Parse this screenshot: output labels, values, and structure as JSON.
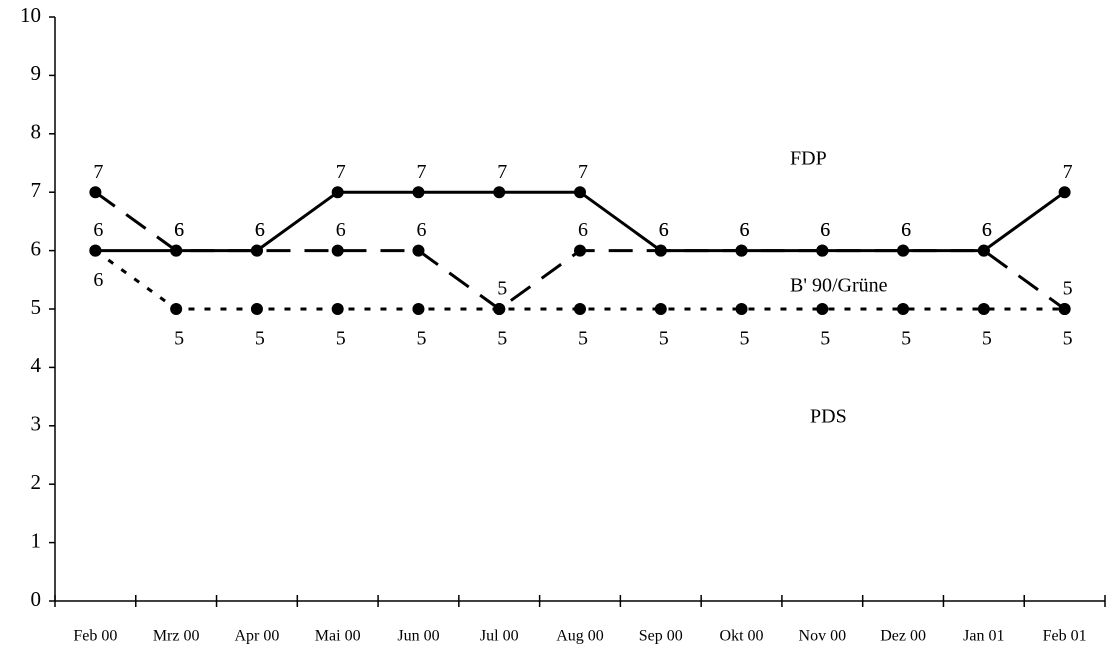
{
  "chart_data": {
    "type": "line",
    "categories": [
      "Feb 00",
      "Mrz 00",
      "Apr 00",
      "Mai 00",
      "Jun 00",
      "Jul 00",
      "Aug 00",
      "Sep 00",
      "Okt 00",
      "Nov 00",
      "Dez 00",
      "Jan 01",
      "Feb 01"
    ],
    "series": [
      {
        "name": "FDP",
        "color": "#000000",
        "dash": "solid",
        "values": [
          6,
          6,
          6,
          7,
          7,
          7,
          7,
          6,
          6,
          6,
          6,
          6,
          7
        ]
      },
      {
        "name": "B' 90/Grüne",
        "color": "#000000",
        "dash": "dashed",
        "values": [
          7,
          6,
          6,
          6,
          6,
          5,
          6,
          6,
          6,
          6,
          6,
          6,
          5
        ]
      },
      {
        "name": "PDS",
        "color": "#000000",
        "dash": "dotted",
        "values": [
          6,
          5,
          5,
          5,
          5,
          5,
          5,
          5,
          5,
          5,
          5,
          5,
          5
        ]
      }
    ],
    "ylim": [
      0,
      10
    ],
    "yticks": [
      0,
      1,
      2,
      3,
      4,
      5,
      6,
      7,
      8,
      9,
      10
    ],
    "grid": false
  }
}
